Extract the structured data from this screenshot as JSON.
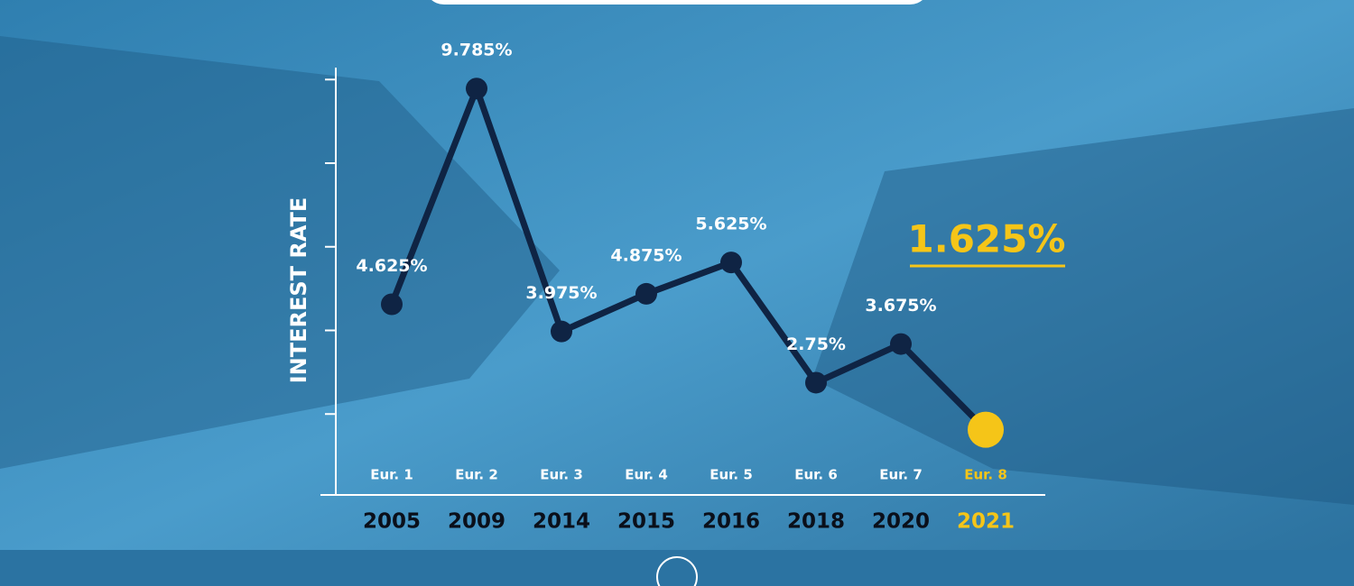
{
  "chart_data": {
    "type": "line",
    "y_label": "INTEREST RATE",
    "categories": [
      "2005",
      "2009",
      "2014",
      "2015",
      "2016",
      "2018",
      "2020",
      "2021"
    ],
    "round_labels": [
      "Eur. 1",
      "Eur. 2",
      "Eur. 3",
      "Eur. 4",
      "Eur. 5",
      "Eur. 6",
      "Eur. 7",
      "Eur. 8"
    ],
    "values": [
      4.625,
      9.785,
      3.975,
      4.875,
      5.625,
      2.75,
      3.675,
      1.625
    ],
    "value_labels": [
      "4.625%",
      "9.785%",
      "3.975%",
      "4.875%",
      "5.625%",
      "2.75%",
      "3.675%",
      "1.625%"
    ],
    "highlight": [
      false,
      false,
      false,
      false,
      false,
      false,
      false,
      true
    ],
    "color": "#0f2444",
    "highlight_color": "#f5c518",
    "ylim": [
      0,
      10.35
    ],
    "yticks": [
      2,
      4,
      6,
      8,
      10
    ]
  }
}
